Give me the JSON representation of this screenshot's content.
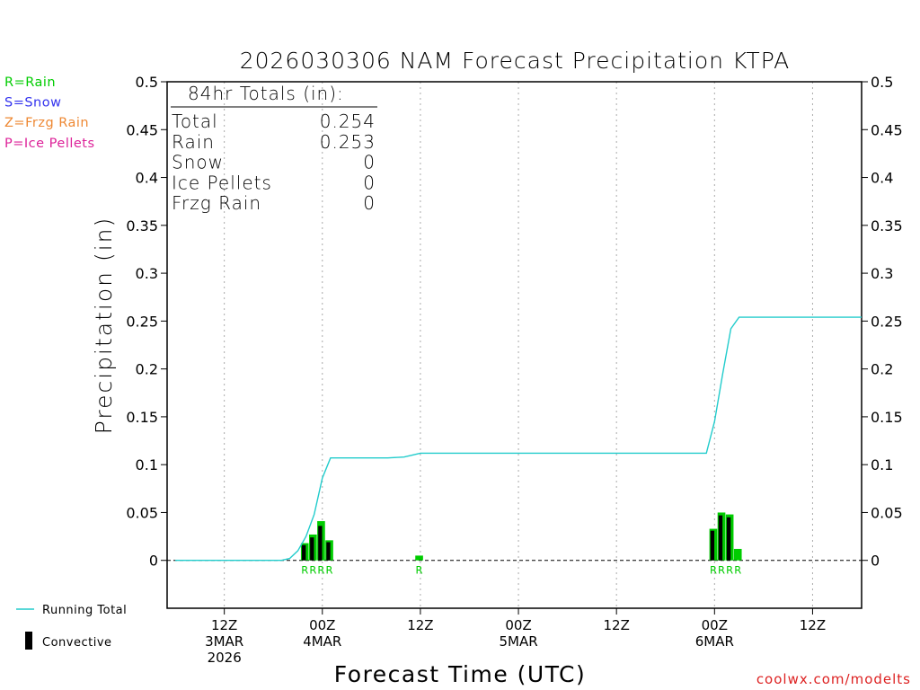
{
  "chart_data": {
    "type": "bar",
    "title": "2026030306 NAM Forecast Precipitation KTPA",
    "xlabel": "Forecast Time (UTC)",
    "ylabel": "Precipitation (in)",
    "ylim": [
      -0.05,
      0.5
    ],
    "y_ticks": [
      "0.5",
      "0.45",
      "0.4",
      "0.35",
      "0.3",
      "0.25",
      "0.2",
      "0.15",
      "0.1",
      "0.05",
      "0"
    ],
    "x_range_hours": [
      -1,
      84
    ],
    "x_ticks": [
      {
        "hour": 6,
        "line1": "12Z",
        "line2": "3MAR",
        "line3": "2026"
      },
      {
        "hour": 18,
        "line1": "00Z",
        "line2": "4MAR",
        "line3": ""
      },
      {
        "hour": 30,
        "line1": "12Z",
        "line2": "",
        "line3": ""
      },
      {
        "hour": 42,
        "line1": "00Z",
        "line2": "5MAR",
        "line3": ""
      },
      {
        "hour": 54,
        "line1": "12Z",
        "line2": "",
        "line3": ""
      },
      {
        "hour": 66,
        "line1": "00Z",
        "line2": "6MAR",
        "line3": ""
      },
      {
        "hour": 78,
        "line1": "12Z",
        "line2": "",
        "line3": ""
      }
    ],
    "precip_bars": [
      {
        "hour": 16,
        "total": 0.018,
        "convective": 0.016
      },
      {
        "hour": 17,
        "total": 0.027,
        "convective": 0.024
      },
      {
        "hour": 18,
        "total": 0.041,
        "convective": 0.036
      },
      {
        "hour": 19,
        "total": 0.021,
        "convective": 0.019
      },
      {
        "hour": 30,
        "total": 0.005,
        "convective": 0.0
      },
      {
        "hour": 66,
        "total": 0.033,
        "convective": 0.031
      },
      {
        "hour": 67,
        "total": 0.05,
        "convective": 0.047
      },
      {
        "hour": 68,
        "total": 0.048,
        "convective": 0.045
      },
      {
        "hour": 69,
        "total": 0.012,
        "convective": 0.0
      }
    ],
    "type_labels": [
      {
        "hour": 16,
        "label": "R"
      },
      {
        "hour": 17,
        "label": "R"
      },
      {
        "hour": 18,
        "label": "R"
      },
      {
        "hour": 19,
        "label": "R"
      },
      {
        "hour": 30,
        "label": "R"
      },
      {
        "hour": 66,
        "label": "R"
      },
      {
        "hour": 67,
        "label": "R"
      },
      {
        "hour": 68,
        "label": "R"
      },
      {
        "hour": 69,
        "label": "R"
      }
    ],
    "running_total": {
      "name": "Running Total",
      "x": [
        0,
        13,
        14,
        15,
        16,
        17,
        18,
        19,
        20,
        22,
        26,
        28,
        29,
        30,
        36,
        48,
        60,
        64,
        65,
        66,
        67,
        68,
        69,
        70,
        78,
        84
      ],
      "y": [
        0,
        0,
        0.002,
        0.01,
        0.025,
        0.048,
        0.086,
        0.107,
        0.107,
        0.107,
        0.107,
        0.108,
        0.11,
        0.112,
        0.112,
        0.112,
        0.112,
        0.112,
        0.112,
        0.145,
        0.195,
        0.242,
        0.254,
        0.254,
        0.254,
        0.254
      ]
    },
    "colors": {
      "rain": "#00cc00",
      "snow": "#3333ee",
      "frzg_rain": "#ee8833",
      "ice_pellets": "#dd2299",
      "running_total": "#22cccc",
      "convective": "#000000",
      "grid": "#aaaaaa",
      "credit": "#dd2222"
    }
  },
  "type_legend": [
    {
      "text": "R=Rain",
      "color": "#00cc00"
    },
    {
      "text": "S=Snow",
      "color": "#3333ee"
    },
    {
      "text": "Z=Frzg Rain",
      "color": "#ee8833"
    },
    {
      "text": "P=Ice Pellets",
      "color": "#dd2299"
    }
  ],
  "totals_box": {
    "header": "84hr Totals (in):",
    "rows": [
      {
        "label": "Total",
        "value": "0.254"
      },
      {
        "label": "Rain",
        "value": "0.253"
      },
      {
        "label": "Snow",
        "value": "0"
      },
      {
        "label": "Ice Pellets",
        "value": "0"
      },
      {
        "label": "Frzg Rain",
        "value": "0"
      }
    ]
  },
  "series_legend": {
    "running_total": "Running Total",
    "convective": "Convective"
  },
  "credit": "coolwx.com/modelts"
}
